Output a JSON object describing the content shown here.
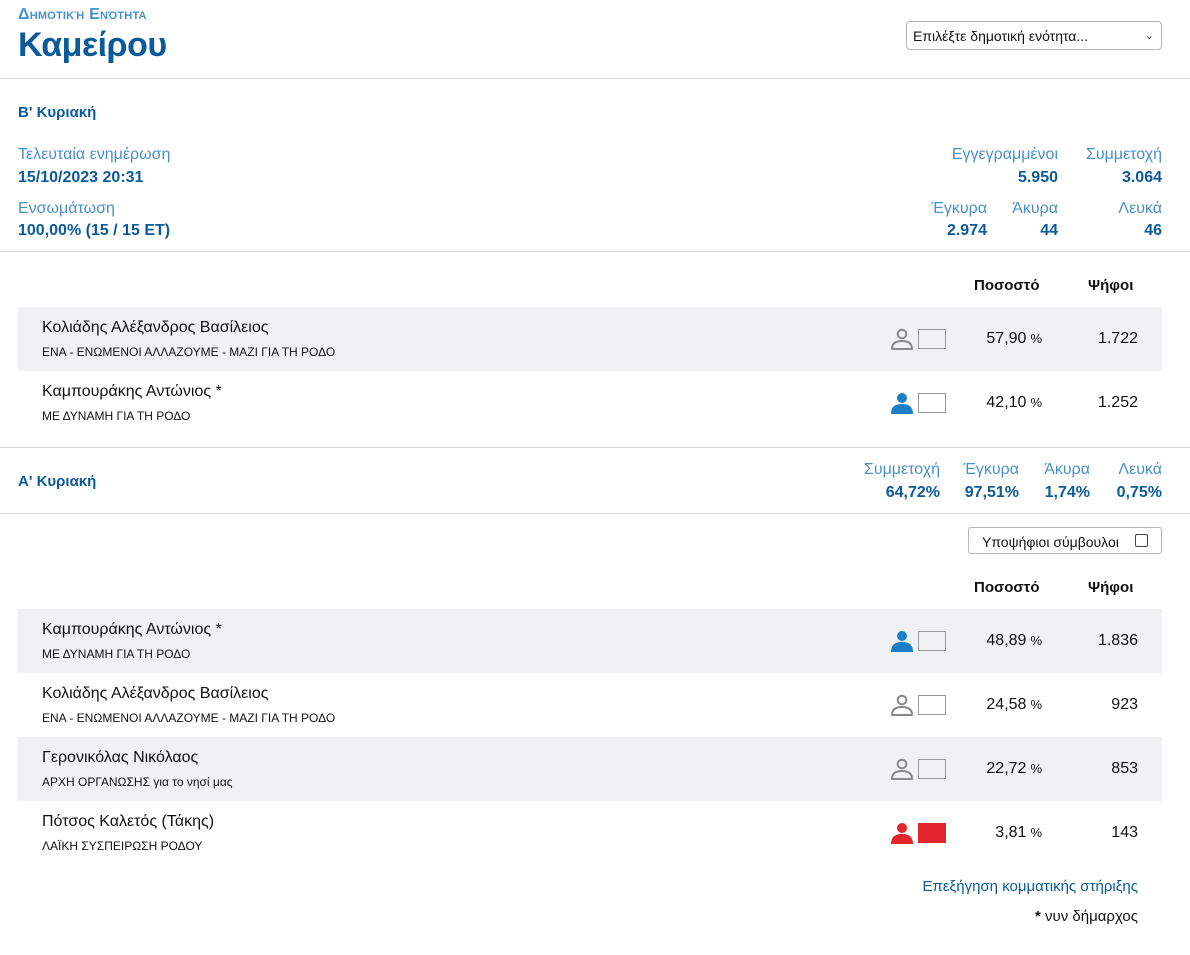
{
  "header": {
    "supertitle": "Δημοτική Ενότητα",
    "title": "Καμείρου",
    "select_value": "Επιλέξτε δημοτική ενότητα..."
  },
  "round_b": {
    "label": "Β' Κυριακή",
    "last_update_label": "Τελευταία ενημέρωση",
    "last_update_value": "15/10/2023 20:31",
    "integration_label": "Ενσωμάτωση",
    "integration_value": "100,00% (15 / 15 ΕΤ)",
    "registered_label": "Εγγεγραμμένοι",
    "registered_value": "5.950",
    "turnout_label": "Συμμετοχή",
    "turnout_value": "3.064",
    "valid_label": "Έγκυρα",
    "valid_value": "2.974",
    "invalid_label": "Άκυρα",
    "invalid_value": "44",
    "blank_label": "Λευκά",
    "blank_value": "46",
    "col_pct": "Ποσοστό",
    "col_votes": "Ψήφοι",
    "candidates": [
      {
        "name": "Κολιάδης Αλέξανδρος Βασίλειος",
        "party": "ΕΝΑ - ΕΝΩΜΕΝΟΙ ΑΛΛΑΖΟΥΜΕ - ΜΑΖΙ ΓΙΑ ΤΗ ΡΟΔΟ",
        "pct": "57,90",
        "unit": "%",
        "votes": "1.722",
        "icon": "person-outline-icon",
        "icon_color": "#888888",
        "swatch": "#f0f1f3"
      },
      {
        "name": "Καμπουράκης Αντώνιος *",
        "party": "ΜΕ ΔΥΝΑΜΗ ΓΙΑ ΤΗ ΡΟΔΟ",
        "pct": "42,10",
        "unit": "%",
        "votes": "1.252",
        "icon": "person-filled-icon",
        "icon_color": "#1a7fc4",
        "swatch": "#ffffff"
      }
    ]
  },
  "round_a": {
    "label": "Α' Κυριακή",
    "turnout_label": "Συμμετοχή",
    "turnout_value": "64,72%",
    "valid_label": "Έγκυρα",
    "valid_value": "97,51%",
    "invalid_label": "Άκυρα",
    "invalid_value": "1,74%",
    "blank_label": "Λευκά",
    "blank_value": "0,75%",
    "councillors_toggle": "Υποψήφιοι σύμβουλοι",
    "col_pct": "Ποσοστό",
    "col_votes": "Ψήφοι",
    "candidates": [
      {
        "name": "Καμπουράκης Αντώνιος *",
        "party": "ΜΕ ΔΥΝΑΜΗ ΓΙΑ ΤΗ ΡΟΔΟ",
        "pct": "48,89",
        "unit": "%",
        "votes": "1.836",
        "icon": "person-filled-icon",
        "icon_color": "#1a7fc4",
        "swatch": "#f0f1f3"
      },
      {
        "name": "Κολιάδης Αλέξανδρος Βασίλειος",
        "party": "ΕΝΑ - ΕΝΩΜΕΝΟΙ ΑΛΛΑΖΟΥΜΕ - ΜΑΖΙ ΓΙΑ ΤΗ ΡΟΔΟ",
        "pct": "24,58",
        "unit": "%",
        "votes": "923",
        "icon": "person-outline-icon",
        "icon_color": "#888888",
        "swatch": "#ffffff"
      },
      {
        "name": "Γερονικόλας Νικόλαος",
        "party": "ΑΡΧΗ ΟΡΓΑΝΩΣΗΣ για το νησί μας",
        "pct": "22,72",
        "unit": "%",
        "votes": "853",
        "icon": "person-outline-icon",
        "icon_color": "#888888",
        "swatch": "#f0f1f3"
      },
      {
        "name": "Πότσος Καλετός (Τάκης)",
        "party": "ΛΑΪΚΗ ΣΥΣΠΕΙΡΩΣΗ ΡΟΔΟΥ",
        "pct": "3,81",
        "unit": "%",
        "votes": "143",
        "icon": "person-filled-icon",
        "icon_color": "#e3262c",
        "swatch": "#e3262c"
      }
    ]
  },
  "footer": {
    "party_support_link": "Επεξήγηση κομματικής στήριξης",
    "footnote_star": "*",
    "footnote_text": "νυν δήμαρχος"
  }
}
